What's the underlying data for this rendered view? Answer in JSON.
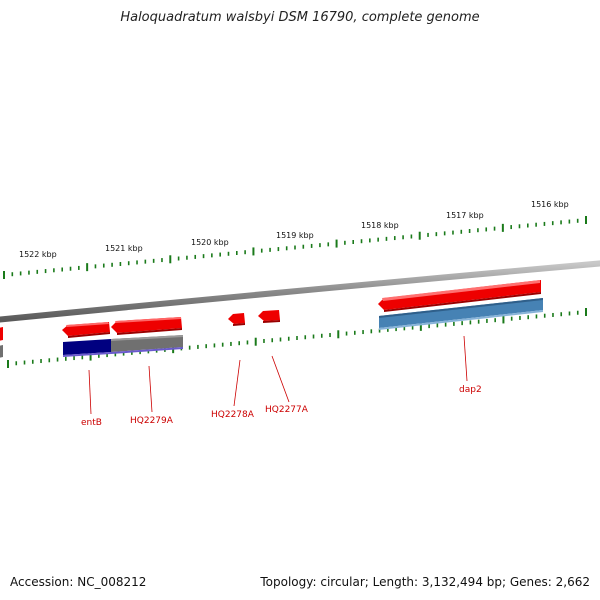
{
  "title": "Haloquadratum walsbyi DSM 16790, complete genome",
  "ruler": {
    "labels": [
      "1522 kbp",
      "1521 kbp",
      "1520 kbp",
      "1519 kbp",
      "1518 kbp",
      "1517 kbp",
      "1516 kbp"
    ],
    "tick_color": "#1a7a1a"
  },
  "genes": [
    {
      "name": "entB",
      "strand": "forward"
    },
    {
      "name": "HQ2279A",
      "strand": "forward"
    },
    {
      "name": "HQ2278A",
      "strand": "forward"
    },
    {
      "name": "HQ2277A",
      "strand": "forward"
    },
    {
      "name": "dap2",
      "strand": "forward"
    }
  ],
  "colors": {
    "cds": "#ee0000",
    "label": "#cc0000",
    "backbone": "#808080",
    "feature_navy": "#000080",
    "feature_gray": "#707070",
    "feature_blue": "#4682b4"
  },
  "footer": {
    "accession": "Accession: NC_008212",
    "stats": "Topology: circular; Length: 3,132,494 bp; Genes: 2,662"
  }
}
